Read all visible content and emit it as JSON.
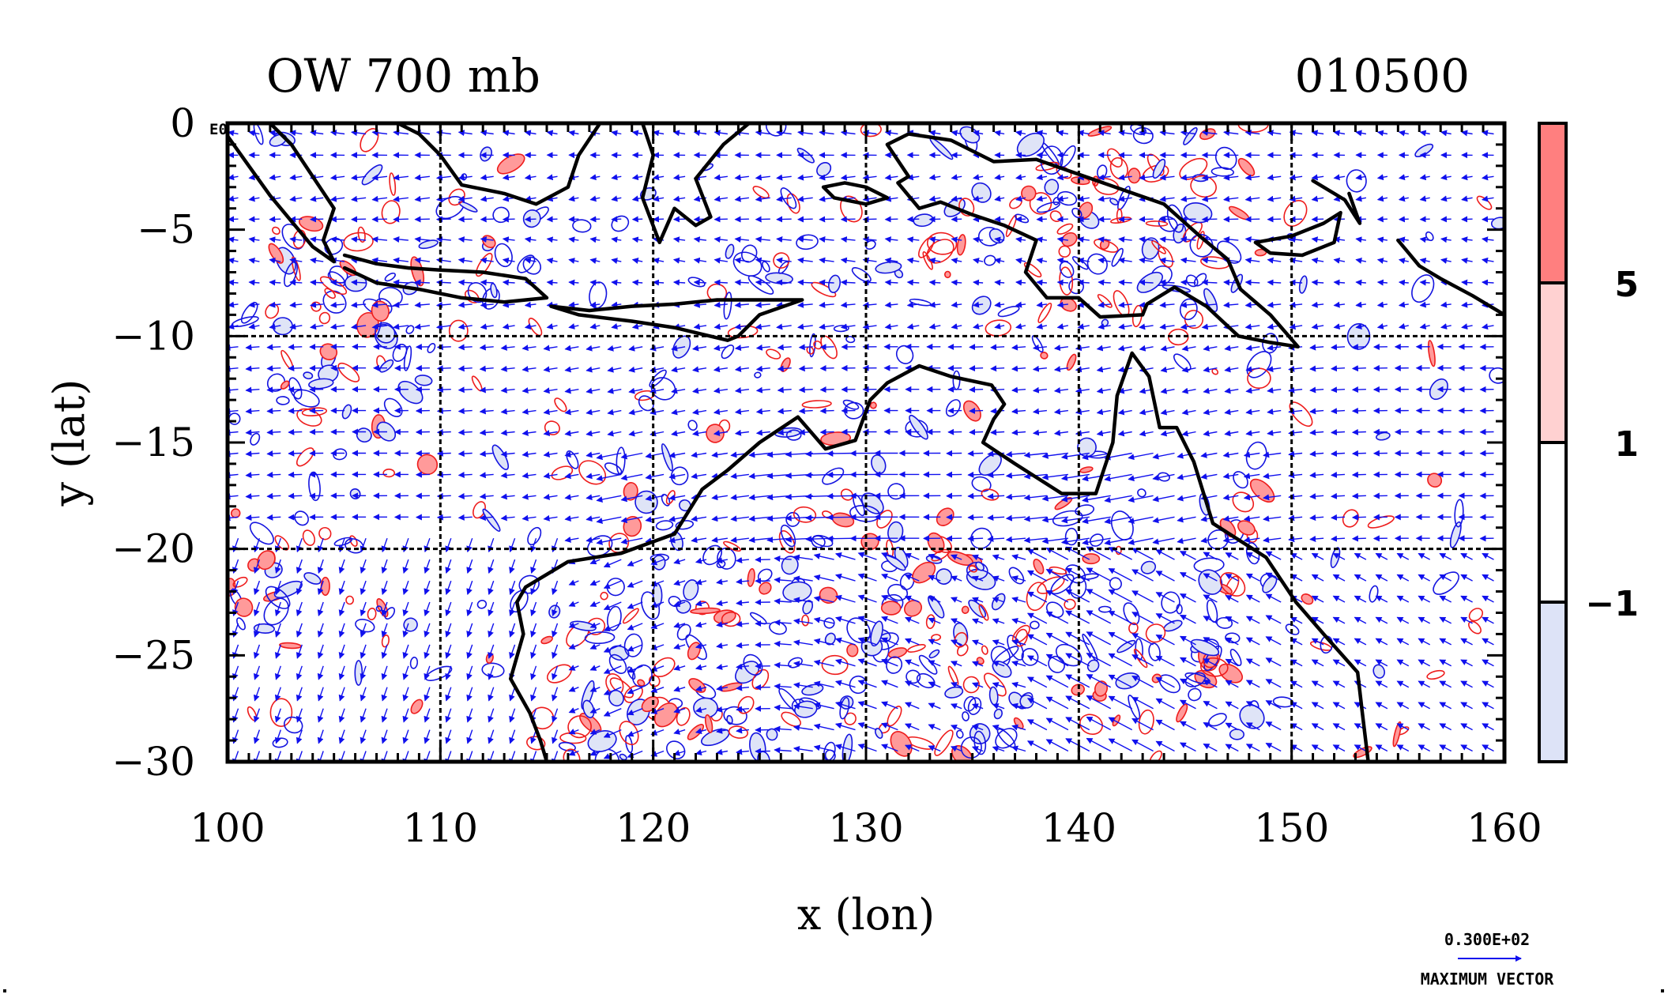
{
  "header": {
    "title": "OW 700 mb",
    "time_stamp": "010500",
    "corner_label": "E0"
  },
  "chart_data": {
    "type": "map",
    "xlabel": "x (lon)",
    "ylabel": "y (lat)",
    "xlim": [
      100,
      160
    ],
    "ylim": [
      -30,
      0
    ],
    "x_ticks": [
      {
        "value": 100,
        "label": "100"
      },
      {
        "value": 110,
        "label": "110"
      },
      {
        "value": 120,
        "label": "120"
      },
      {
        "value": 130,
        "label": "130"
      },
      {
        "value": 140,
        "label": "140"
      },
      {
        "value": 150,
        "label": "150"
      },
      {
        "value": 160,
        "label": "160"
      }
    ],
    "y_ticks": [
      {
        "value": 0,
        "label": "0"
      },
      {
        "value": -5,
        "label": "−5"
      },
      {
        "value": -10,
        "label": "−10"
      },
      {
        "value": -15,
        "label": "−15"
      },
      {
        "value": -20,
        "label": "−20"
      },
      {
        "value": -25,
        "label": "−25"
      },
      {
        "value": -30,
        "label": "−30"
      }
    ],
    "grid_lon": [
      110,
      120,
      130,
      140,
      150
    ],
    "grid_lat": [
      -10,
      -20
    ],
    "grid": true,
    "colorbar": {
      "position": "right",
      "bands": [
        {
          "color": "#ff7f7f"
        },
        {
          "color": "#ffd1d1"
        },
        {
          "color": "#ffffff"
        },
        {
          "color": "#dde3f7"
        }
      ],
      "labels": [
        "5",
        "1",
        "−1"
      ]
    },
    "vector_key": {
      "magnitude": "0.300E+02",
      "caption": "MAXIMUM VECTOR"
    },
    "colors": {
      "positive_contour": "#ee1c1c",
      "positive_fill": "#ff9a9a",
      "negative_contour": "#1414e0",
      "negative_fill": "#dfe4f7",
      "vectors": "#1010ee",
      "coast": "#000000"
    },
    "coastlines": [
      {
        "name": "sumatra",
        "points": [
          [
            100,
            -0.6
          ],
          [
            101,
            -2
          ],
          [
            102,
            -3.4
          ],
          [
            103,
            -4.6
          ],
          [
            104,
            -5.8
          ],
          [
            105,
            -6.5
          ],
          [
            104.5,
            -5.5
          ],
          [
            105,
            -4
          ],
          [
            104,
            -2.5
          ],
          [
            103,
            -1
          ],
          [
            102,
            0
          ]
        ]
      },
      {
        "name": "java",
        "points": [
          [
            105.5,
            -6.2
          ],
          [
            107,
            -6.6
          ],
          [
            108.5,
            -6.8
          ],
          [
            110,
            -6.9
          ],
          [
            112,
            -7
          ],
          [
            114,
            -7.3
          ],
          [
            115,
            -8.2
          ],
          [
            113,
            -8.4
          ],
          [
            111,
            -8.2
          ],
          [
            109,
            -7.8
          ],
          [
            107,
            -7.5
          ],
          [
            105.5,
            -6.8
          ]
        ]
      },
      {
        "name": "borneo",
        "points": [
          [
            108,
            0
          ],
          [
            109,
            -0.5
          ],
          [
            110,
            -1.5
          ],
          [
            111,
            -2.9
          ],
          [
            113,
            -3.3
          ],
          [
            114.5,
            -3.8
          ],
          [
            116,
            -3
          ],
          [
            116.5,
            -1.5
          ],
          [
            117.5,
            0
          ]
        ]
      },
      {
        "name": "sulawesi",
        "points": [
          [
            119.5,
            0
          ],
          [
            120,
            -1.5
          ],
          [
            119.5,
            -3.5
          ],
          [
            120.3,
            -5.6
          ],
          [
            121,
            -4
          ],
          [
            122,
            -4.8
          ],
          [
            122.7,
            -4.4
          ],
          [
            122,
            -2.6
          ],
          [
            123.3,
            -1
          ],
          [
            124.5,
            0
          ]
        ]
      },
      {
        "name": "lesser-sundas",
        "points": [
          [
            115.2,
            -8.6
          ],
          [
            117,
            -8.8
          ],
          [
            119,
            -8.6
          ],
          [
            121,
            -8.5
          ],
          [
            123,
            -8.3
          ],
          [
            125,
            -8.3
          ],
          [
            127,
            -8.3
          ],
          [
            125,
            -9
          ],
          [
            124,
            -10
          ],
          [
            123.5,
            -10.2
          ],
          [
            121,
            -9.6
          ],
          [
            119,
            -9.3
          ],
          [
            116.5,
            -9
          ],
          [
            115.2,
            -8.6
          ]
        ]
      },
      {
        "name": "seram",
        "points": [
          [
            128,
            -3
          ],
          [
            129,
            -2.8
          ],
          [
            130,
            -3
          ],
          [
            131,
            -3.5
          ],
          [
            130,
            -3.8
          ],
          [
            128.5,
            -3.5
          ],
          [
            128,
            -3
          ]
        ]
      },
      {
        "name": "new-guinea",
        "points": [
          [
            131,
            -1
          ],
          [
            132,
            -0.5
          ],
          [
            134,
            -0.8
          ],
          [
            136,
            -1.8
          ],
          [
            138,
            -1.7
          ],
          [
            140,
            -2.4
          ],
          [
            142,
            -3.1
          ],
          [
            144,
            -3.8
          ],
          [
            145.8,
            -5.4
          ],
          [
            147,
            -6.4
          ],
          [
            147.6,
            -7.8
          ],
          [
            149,
            -9
          ],
          [
            150.3,
            -10.5
          ],
          [
            149,
            -10.3
          ],
          [
            147.5,
            -10
          ],
          [
            146,
            -8.6
          ],
          [
            144.5,
            -7.7
          ],
          [
            143.2,
            -8.5
          ],
          [
            143,
            -9
          ],
          [
            141,
            -9.1
          ],
          [
            140,
            -8.2
          ],
          [
            138.5,
            -8.2
          ],
          [
            137.5,
            -7
          ],
          [
            138,
            -5.5
          ],
          [
            136.5,
            -4.8
          ],
          [
            135,
            -4.3
          ],
          [
            133.5,
            -3.7
          ],
          [
            132.5,
            -4
          ],
          [
            131.5,
            -2.8
          ],
          [
            132,
            -2.5
          ],
          [
            131,
            -1
          ]
        ]
      },
      {
        "name": "new-britain",
        "points": [
          [
            148.3,
            -5.6
          ],
          [
            150,
            -5.3
          ],
          [
            151.5,
            -4.7
          ],
          [
            152.3,
            -4.2
          ],
          [
            152,
            -5.6
          ],
          [
            150.5,
            -6.2
          ],
          [
            149,
            -6.1
          ],
          [
            148.3,
            -5.6
          ]
        ]
      },
      {
        "name": "new-ireland",
        "points": [
          [
            151,
            -2.7
          ],
          [
            152.5,
            -3.6
          ],
          [
            153.2,
            -4.7
          ],
          [
            152.7,
            -3.3
          ]
        ]
      },
      {
        "name": "solomons",
        "points": [
          [
            155,
            -5.5
          ],
          [
            156,
            -6.7
          ],
          [
            157,
            -7.3
          ],
          [
            158.5,
            -8.1
          ],
          [
            160,
            -9
          ]
        ]
      },
      {
        "name": "australia",
        "points": [
          [
            113.6,
            -22.5
          ],
          [
            114,
            -21.8
          ],
          [
            116,
            -20.6
          ],
          [
            118.5,
            -20.2
          ],
          [
            121,
            -19.3
          ],
          [
            122.3,
            -17.2
          ],
          [
            123.5,
            -16.3
          ],
          [
            125,
            -15
          ],
          [
            126.8,
            -13.8
          ],
          [
            128.1,
            -15.3
          ],
          [
            129.5,
            -14.9
          ],
          [
            130.2,
            -13
          ],
          [
            131,
            -12.2
          ],
          [
            132.5,
            -11.4
          ],
          [
            134,
            -11.9
          ],
          [
            135.9,
            -12.3
          ],
          [
            136.5,
            -13.2
          ],
          [
            136,
            -13.9
          ],
          [
            135.5,
            -15
          ],
          [
            137,
            -16
          ],
          [
            139.2,
            -17.4
          ],
          [
            140.8,
            -17.4
          ],
          [
            141.6,
            -15
          ],
          [
            141.8,
            -12.8
          ],
          [
            142.5,
            -10.8
          ],
          [
            143.3,
            -11.9
          ],
          [
            143.8,
            -14.3
          ],
          [
            144.6,
            -14.3
          ],
          [
            145.4,
            -15.9
          ],
          [
            146.3,
            -18.8
          ],
          [
            148.8,
            -20.4
          ],
          [
            150.2,
            -22.5
          ],
          [
            151.5,
            -24
          ],
          [
            153.1,
            -25.8
          ],
          [
            153.3,
            -27.5
          ],
          [
            153.6,
            -30
          ]
        ]
      },
      {
        "name": "australia-west",
        "points": [
          [
            113.6,
            -22.5
          ],
          [
            113.9,
            -24
          ],
          [
            113.3,
            -26.1
          ],
          [
            114.2,
            -27.7
          ],
          [
            114.7,
            -29
          ],
          [
            115,
            -30
          ]
        ]
      }
    ]
  }
}
